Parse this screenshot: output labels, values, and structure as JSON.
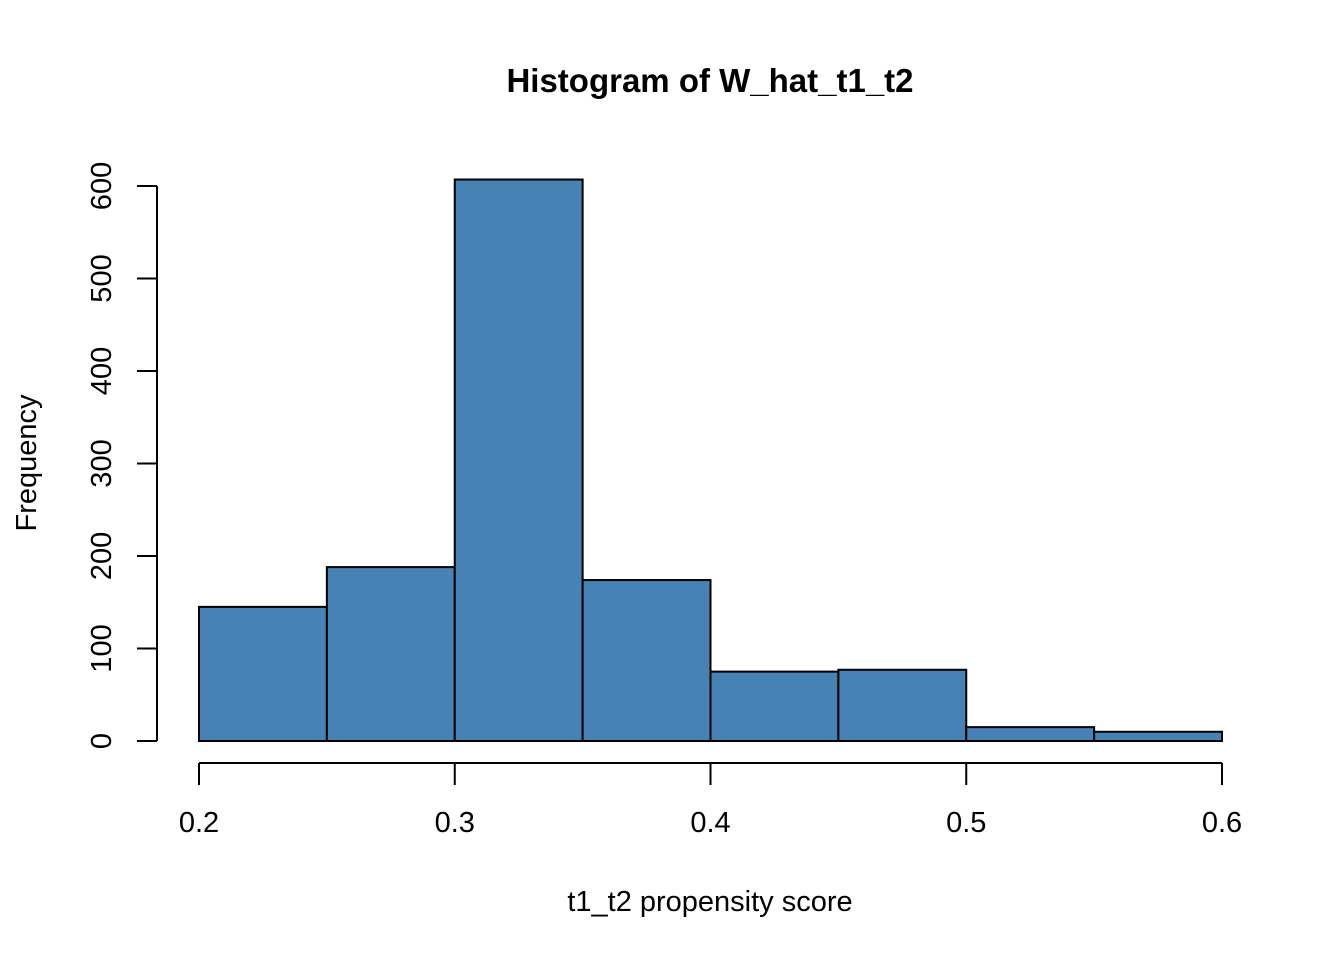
{
  "chart_data": {
    "type": "bar",
    "title": "Histogram of W_hat_t1_t2",
    "xlabel": "t1_t2 propensity score",
    "ylabel": "Frequency",
    "bin_edges": [
      0.2,
      0.25,
      0.3,
      0.35,
      0.4,
      0.45,
      0.5,
      0.55,
      0.6
    ],
    "values": [
      145,
      188,
      607,
      174,
      75,
      77,
      15,
      10
    ],
    "xlim": [
      0.2,
      0.6
    ],
    "ylim": [
      0,
      600
    ],
    "x_ticks": [
      0.2,
      0.3,
      0.4,
      0.5,
      0.6
    ],
    "x_tick_labels": [
      "0.2",
      "0.3",
      "0.4",
      "0.5",
      "0.6"
    ],
    "y_ticks": [
      0,
      100,
      200,
      300,
      400,
      500,
      600
    ],
    "y_tick_labels": [
      "0",
      "100",
      "200",
      "300",
      "400",
      "500",
      "600"
    ],
    "bar_color": "#4682B4",
    "grid": false,
    "legend": "none"
  }
}
